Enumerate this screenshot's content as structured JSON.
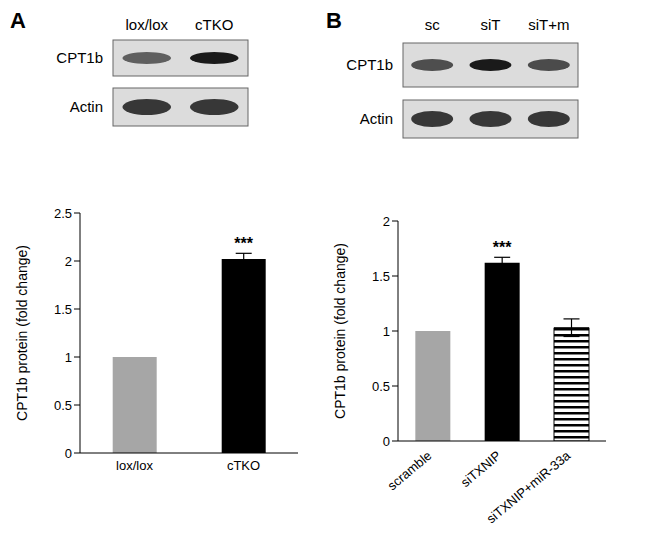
{
  "chart_data": [
    {
      "type": "bar",
      "panel_label": "A",
      "categories": [
        "lox/lox",
        "cTKO"
      ],
      "values": [
        1,
        2.02
      ],
      "errors": [
        null,
        0.06
      ],
      "annotations": [
        null,
        "***"
      ],
      "colors": [
        "#a6a6a6",
        "#000000"
      ],
      "y_label": "CPT1b protein (fold change)",
      "ylim": [
        0,
        2.5
      ],
      "yticks": [
        0,
        0.5,
        1,
        1.5,
        2,
        2.5
      ],
      "blot": {
        "lanes": [
          "lox/lox",
          "cTKO"
        ],
        "rows": [
          "CPT1b",
          "Actin"
        ]
      }
    },
    {
      "type": "bar",
      "panel_label": "B",
      "categories": [
        "scramble",
        "siTXNIP",
        "siTXNIP+miR-33a"
      ],
      "values": [
        1,
        1.62,
        1.03
      ],
      "errors": [
        null,
        0.05,
        0.08
      ],
      "annotations": [
        null,
        "***",
        null
      ],
      "colors": [
        "#a6a6a6",
        "#000000",
        "#000000"
      ],
      "y_label": "CPT1b protein (fold change)",
      "ylim": [
        0,
        2
      ],
      "yticks": [
        0,
        0.5,
        1,
        1.5,
        2
      ],
      "blot": {
        "lanes": [
          "sc",
          "siT",
          "siT+m"
        ],
        "rows": [
          "CPT1b",
          "Actin"
        ]
      }
    }
  ]
}
